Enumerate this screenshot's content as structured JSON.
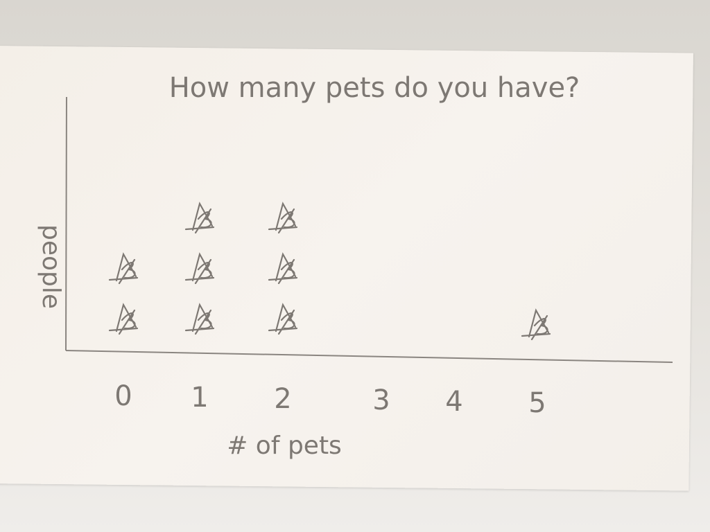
{
  "chart_data": {
    "type": "dot",
    "title": "How many pets do you have?",
    "xlabel": "# of pets",
    "ylabel": "people",
    "categories": [
      "0",
      "1",
      "2",
      "3",
      "4",
      "5"
    ],
    "values": [
      2,
      3,
      3,
      0,
      0,
      1
    ],
    "marker": "hand-drawn star",
    "grid": false,
    "colors": {
      "pencil": "#7d7873",
      "paper": "#f5f1ec"
    }
  }
}
